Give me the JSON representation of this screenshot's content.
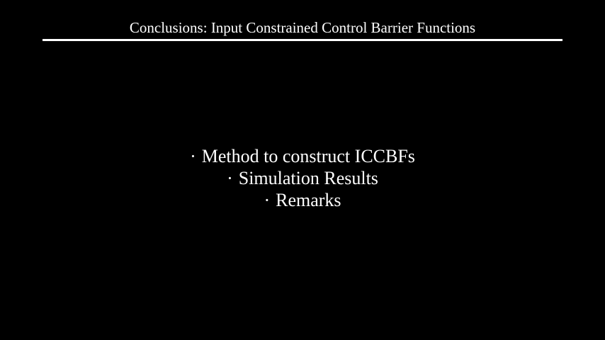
{
  "slide": {
    "title": "Conclusions: Input Constrained Control Barrier Functions",
    "bullet_symbol": "·",
    "items": [
      {
        "label": "Method to construct ICCBFs"
      },
      {
        "label": "Simulation Results"
      },
      {
        "label": "Remarks"
      }
    ]
  },
  "colors": {
    "background": "#000000",
    "text": "#ffffff",
    "rule": "#ffffff"
  }
}
